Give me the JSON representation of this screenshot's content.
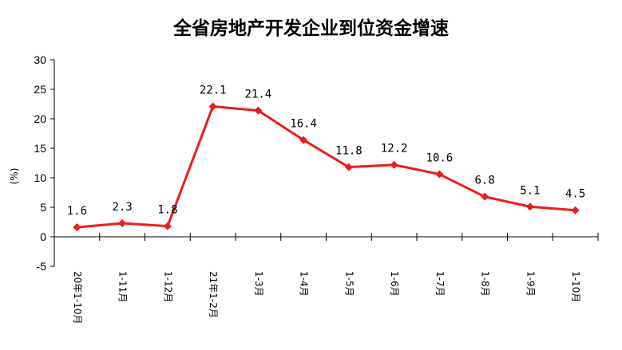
{
  "chart_data": {
    "type": "line",
    "title": "全省房地产开发企业到位资金增速",
    "ylabel": "(%)",
    "xlabel": "",
    "ylim": [
      -5,
      30
    ],
    "yticks": [
      -5,
      0,
      5,
      10,
      15,
      20,
      25,
      30
    ],
    "categories": [
      "20年1-10月",
      "1-11月",
      "1-12月",
      "21年1-2月",
      "1-3月",
      "1-4月",
      "1-5月",
      "1-6月",
      "1-7月",
      "1-8月",
      "1-9月",
      "1-10月"
    ],
    "series": [
      {
        "values": [
          1.6,
          2.3,
          1.8,
          22.1,
          21.4,
          16.4,
          11.8,
          12.2,
          10.6,
          6.8,
          5.1,
          4.5
        ],
        "labels": [
          "1.6",
          "2.3",
          "1.8",
          "22.1",
          "21.4",
          "16.4",
          "11.8",
          "12.2",
          "10.6",
          "6.8",
          "5.1",
          "4.5"
        ],
        "color": "#ee1c1c"
      }
    ],
    "grid": false,
    "legend": "none"
  }
}
